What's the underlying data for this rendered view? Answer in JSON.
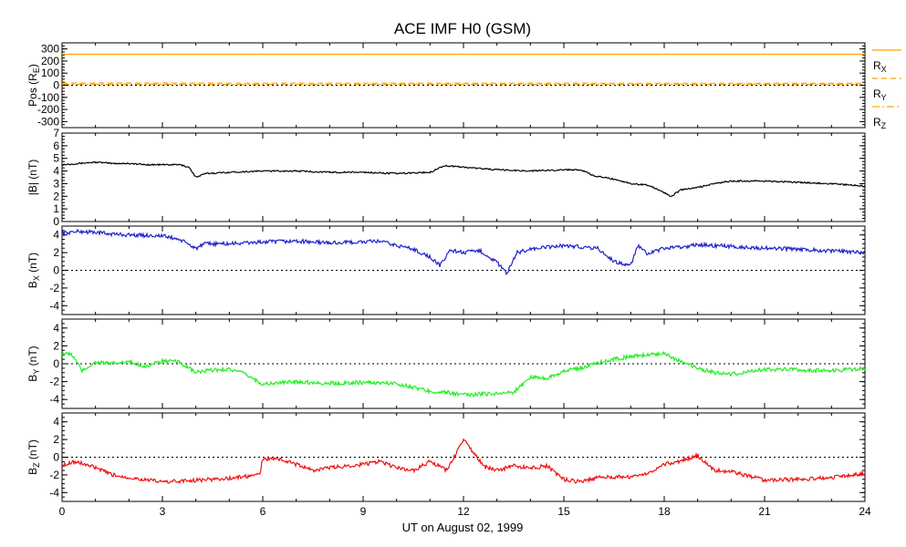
{
  "chart_data": {
    "title": "ACE IMF H0 (GSM)",
    "xlabel": "UT on August 02, 1999",
    "xlim": [
      0,
      24
    ],
    "x_ticks": [
      "0",
      "3",
      "6",
      "9",
      "12",
      "15",
      "18",
      "21",
      "24"
    ],
    "grid": false,
    "colors": {
      "pos": "#FFA500",
      "b": "#000000",
      "bx": "#2020CC",
      "by": "#22EE22",
      "bz": "#EE1111"
    },
    "panels": [
      {
        "type": "line",
        "ylabel": {
          "main": "Pos (R",
          "sub": "E",
          "tail": ")"
        },
        "ylim": [
          -350,
          350
        ],
        "yticks": [
          -300,
          -200,
          -100,
          0,
          100,
          200,
          300
        ],
        "ytick_labels": [
          "-300",
          "-200",
          "-100",
          "0",
          "100",
          "200",
          "300"
        ],
        "zero_line": true,
        "series": [
          {
            "name": "R",
            "sub": "X",
            "style": "solid",
            "x": [
              0,
              24
            ],
            "y": [
              256,
              256
            ]
          },
          {
            "name": "R",
            "sub": "Y",
            "style": "dashed",
            "x": [
              0,
              24
            ],
            "y": [
              18,
              16
            ]
          },
          {
            "name": "R",
            "sub": "Z",
            "style": "dashdot",
            "x": [
              0,
              24
            ],
            "y": [
              8,
              8
            ]
          }
        ]
      },
      {
        "type": "line",
        "ylabel": {
          "main": "|B| (nT)",
          "sub": "",
          "tail": ""
        },
        "ylim": [
          0,
          7
        ],
        "yticks": [
          0,
          1,
          2,
          3,
          4,
          5,
          6,
          7
        ],
        "ytick_labels": [
          "0",
          "1",
          "2",
          "3",
          "4",
          "5",
          "6",
          "7"
        ],
        "zero_line": false,
        "series": [
          {
            "name": "|B|",
            "x": [
              0,
              0.5,
              1,
              1.5,
              2,
              2.5,
              3,
              3.5,
              3.8,
              4,
              4.3,
              5,
              6,
              7,
              8,
              9,
              10,
              11,
              11.4,
              11.6,
              12,
              13,
              14,
              15,
              15.5,
              15.9,
              16.2,
              16.6,
              17,
              17.5,
              18,
              18.2,
              18.5,
              19,
              19.5,
              20,
              21,
              22,
              23,
              24
            ],
            "y": [
              4.5,
              4.6,
              4.7,
              4.6,
              4.6,
              4.5,
              4.5,
              4.5,
              4.3,
              3.5,
              3.8,
              3.9,
              4.0,
              4.0,
              3.9,
              3.9,
              3.8,
              3.9,
              4.4,
              4.4,
              4.3,
              4.1,
              4.0,
              4.1,
              4.1,
              3.6,
              3.5,
              3.3,
              3.0,
              2.9,
              2.3,
              2.0,
              2.5,
              2.7,
              3.0,
              3.2,
              3.2,
              3.1,
              3.0,
              2.8
            ]
          }
        ]
      },
      {
        "type": "line",
        "ylabel": {
          "main": "B",
          "sub": "X",
          "tail": " (nT)"
        },
        "ylim": [
          -5,
          5
        ],
        "yticks": [
          -4,
          -2,
          0,
          2,
          4
        ],
        "ytick_labels": [
          "-4",
          "-2",
          "0",
          "2",
          "4"
        ],
        "zero_line": true,
        "series": [
          {
            "name": "B_X",
            "x": [
              0,
              0.5,
              1,
              1.5,
              2,
              3,
              3.5,
              4,
              4.3,
              5,
              6,
              7,
              8,
              9,
              9.5,
              10,
              10.5,
              11,
              11.3,
              11.6,
              12,
              12.5,
              13,
              13.3,
              13.6,
              14,
              15,
              16,
              16.5,
              17,
              17.2,
              17.5,
              18,
              18.5,
              19,
              20,
              21,
              22,
              23,
              24
            ],
            "y": [
              4.2,
              4.4,
              4.3,
              4.1,
              4.0,
              3.9,
              3.5,
              2.5,
              3.0,
              3.0,
              3.2,
              3.3,
              3.1,
              3.2,
              3.3,
              2.8,
              2.4,
              1.5,
              0.5,
              2.3,
              2.0,
              2.2,
              0.9,
              -0.4,
              2.0,
              2.4,
              2.8,
              2.5,
              1.0,
              0.5,
              2.8,
              1.8,
              2.5,
              2.6,
              2.9,
              2.7,
              2.5,
              2.4,
              2.2,
              2.0
            ]
          }
        ]
      },
      {
        "type": "line",
        "ylabel": {
          "main": "B",
          "sub": "Y",
          "tail": " (nT)"
        },
        "ylim": [
          -5,
          5
        ],
        "yticks": [
          -4,
          -2,
          0,
          2,
          4
        ],
        "ytick_labels": [
          "-4",
          "-2",
          "0",
          "2",
          "4"
        ],
        "zero_line": true,
        "series": [
          {
            "name": "B_Y",
            "x": [
              0,
              0.3,
              0.6,
              1,
              1.5,
              2,
              2.5,
              3,
              3.5,
              4,
              4.5,
              5,
              5.5,
              6,
              7,
              8,
              9,
              10,
              11,
              11.5,
              12,
              13,
              13.5,
              14,
              14.5,
              15,
              15.5,
              16,
              16.5,
              17,
              17.5,
              18,
              18.5,
              19,
              19.5,
              20,
              21,
              22,
              23,
              24
            ],
            "y": [
              1.2,
              1.0,
              -0.8,
              0.2,
              0.0,
              0.2,
              -0.3,
              0.3,
              0.2,
              -1.0,
              -0.7,
              -0.6,
              -1.2,
              -2.3,
              -2.0,
              -2.2,
              -2.1,
              -2.2,
              -3.1,
              -3.2,
              -3.5,
              -3.3,
              -3.2,
              -1.5,
              -1.6,
              -0.8,
              -0.5,
              0.1,
              0.5,
              0.8,
              1.0,
              1.2,
              0.2,
              -0.5,
              -1.0,
              -1.2,
              -0.6,
              -0.7,
              -0.8,
              -0.5
            ]
          }
        ]
      },
      {
        "type": "line",
        "ylabel": {
          "main": "B",
          "sub": "Z",
          "tail": " (nT)"
        },
        "ylim": [
          -5,
          5
        ],
        "yticks": [
          -4,
          -2,
          0,
          2,
          4
        ],
        "ytick_labels": [
          "-4",
          "-2",
          "0",
          "2",
          "4"
        ],
        "zero_line": true,
        "series": [
          {
            "name": "B_Z",
            "x": [
              0,
              0.3,
              0.6,
              1,
              1.5,
              2,
              3,
              4,
              5,
              5.9,
              6,
              6.5,
              7,
              7.5,
              8,
              9,
              9.5,
              10,
              10.5,
              11,
              11.5,
              12,
              12.3,
              12.6,
              13,
              13.5,
              14,
              14.5,
              15,
              15.5,
              16,
              17,
              17.5,
              18,
              18.5,
              19,
              19.5,
              20,
              21,
              22,
              23,
              24
            ],
            "y": [
              -1.0,
              -0.5,
              -0.7,
              -1.2,
              -2.0,
              -2.3,
              -2.8,
              -2.6,
              -2.4,
              -2.0,
              -0.2,
              -0.2,
              -0.8,
              -1.5,
              -1.2,
              -0.8,
              -0.5,
              -1.2,
              -1.5,
              -0.5,
              -1.5,
              2.0,
              0.5,
              -1.0,
              -1.5,
              -1.0,
              -1.2,
              -1.0,
              -2.5,
              -2.8,
              -2.3,
              -2.2,
              -1.8,
              -0.8,
              -0.4,
              0.2,
              -1.5,
              -1.6,
              -2.6,
              -2.5,
              -2.3,
              -1.8
            ]
          }
        ]
      }
    ]
  }
}
